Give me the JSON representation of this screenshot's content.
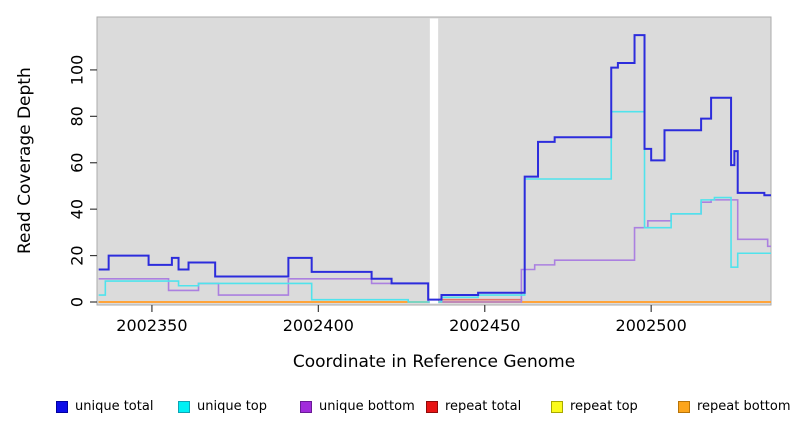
{
  "chart_data": {
    "type": "line",
    "title": "",
    "xlabel": "Coordinate in Reference Genome",
    "ylabel": "Read Coverage Depth",
    "step": "step-after",
    "xlim": [
      2002333.5,
      2002536
    ],
    "ylim": [
      0,
      122.8
    ],
    "x_ticks": [
      2002350,
      2002400,
      2002450,
      2002500
    ],
    "x_tick_labels": [
      "2002350",
      "2002400",
      "2002450",
      "2002500"
    ],
    "y_ticks": [
      0,
      20,
      40,
      60,
      80,
      100
    ],
    "y_tick_labels": [
      "0",
      "20",
      "40",
      "60",
      "80",
      "100"
    ],
    "panel_bg": "#DBDBDB",
    "panel_border": "#ABABAB",
    "masked_gap_region": [
      2002433.5,
      2002436
    ],
    "legend_position": "bottom",
    "grid": "off",
    "series": [
      {
        "name": "unique total",
        "color": "#2C2CDC",
        "legend_fill": "#0D0DE8",
        "legend_border": "#0000A0",
        "line_width": 2,
        "points": [
          [
            2002334,
            14
          ],
          [
            2002337,
            20
          ],
          [
            2002349,
            16
          ],
          [
            2002356,
            19
          ],
          [
            2002358,
            14
          ],
          [
            2002361,
            17
          ],
          [
            2002369,
            11
          ],
          [
            2002391,
            19
          ],
          [
            2002398,
            13
          ],
          [
            2002416,
            10
          ],
          [
            2002422,
            8
          ],
          [
            2002433,
            1
          ],
          [
            2002437,
            3
          ],
          [
            2002448,
            4
          ],
          [
            2002462,
            54
          ],
          [
            2002466,
            69
          ],
          [
            2002471,
            71
          ],
          [
            2002488,
            101
          ],
          [
            2002490,
            103
          ],
          [
            2002495,
            115
          ],
          [
            2002498,
            66
          ],
          [
            2002500,
            61
          ],
          [
            2002504,
            74
          ],
          [
            2002515,
            79
          ],
          [
            2002518,
            88
          ],
          [
            2002524,
            59
          ],
          [
            2002525,
            65
          ],
          [
            2002526,
            47
          ],
          [
            2002534,
            46
          ]
        ]
      },
      {
        "name": "unique top",
        "color": "#50E3EC",
        "legend_fill": "#00F0F4",
        "legend_border": "#0FA3B4",
        "line_width": 1.6,
        "points": [
          [
            2002334,
            3
          ],
          [
            2002336,
            9
          ],
          [
            2002358,
            7
          ],
          [
            2002364,
            8
          ],
          [
            2002398,
            1
          ],
          [
            2002427,
            0
          ],
          [
            2002437,
            2
          ],
          [
            2002448,
            3
          ],
          [
            2002462,
            53
          ],
          [
            2002488,
            82
          ],
          [
            2002498,
            32
          ],
          [
            2002506,
            38
          ],
          [
            2002515,
            44
          ],
          [
            2002519,
            45
          ],
          [
            2002524,
            15
          ],
          [
            2002526,
            21
          ]
        ]
      },
      {
        "name": "unique bottom",
        "color": "#AB80E0",
        "legend_fill": "#A12BDB",
        "legend_border": "#6A1B96",
        "line_width": 1.6,
        "points": [
          [
            2002334,
            10
          ],
          [
            2002355,
            5
          ],
          [
            2002364,
            8
          ],
          [
            2002370,
            3
          ],
          [
            2002391,
            10
          ],
          [
            2002416,
            8
          ],
          [
            2002433,
            0
          ],
          [
            2002461,
            14
          ],
          [
            2002465,
            16
          ],
          [
            2002471,
            18
          ],
          [
            2002495,
            32
          ],
          [
            2002499,
            35
          ],
          [
            2002506,
            38
          ],
          [
            2002515,
            43
          ],
          [
            2002518,
            44
          ],
          [
            2002526,
            27
          ],
          [
            2002535,
            24
          ]
        ]
      },
      {
        "name": "repeat total",
        "color": "#E4766E",
        "legend_fill": "#E81414",
        "legend_border": "#8F0A0A",
        "line_width": 1.6,
        "points": [
          [
            2002334,
            0
          ],
          [
            2002436,
            1
          ],
          [
            2002461,
            0
          ]
        ]
      },
      {
        "name": "repeat top",
        "color": "#F0F000",
        "legend_fill": "#FBFB1C",
        "legend_border": "#A8A800",
        "line_width": 1.4,
        "points": [
          [
            2002334,
            0
          ]
        ]
      },
      {
        "name": "repeat bottom",
        "color": "#FFA43B",
        "legend_fill": "#FCA51C",
        "legend_border": "#B77409",
        "line_width": 2,
        "points": [
          [
            2002334,
            0
          ]
        ]
      }
    ]
  }
}
